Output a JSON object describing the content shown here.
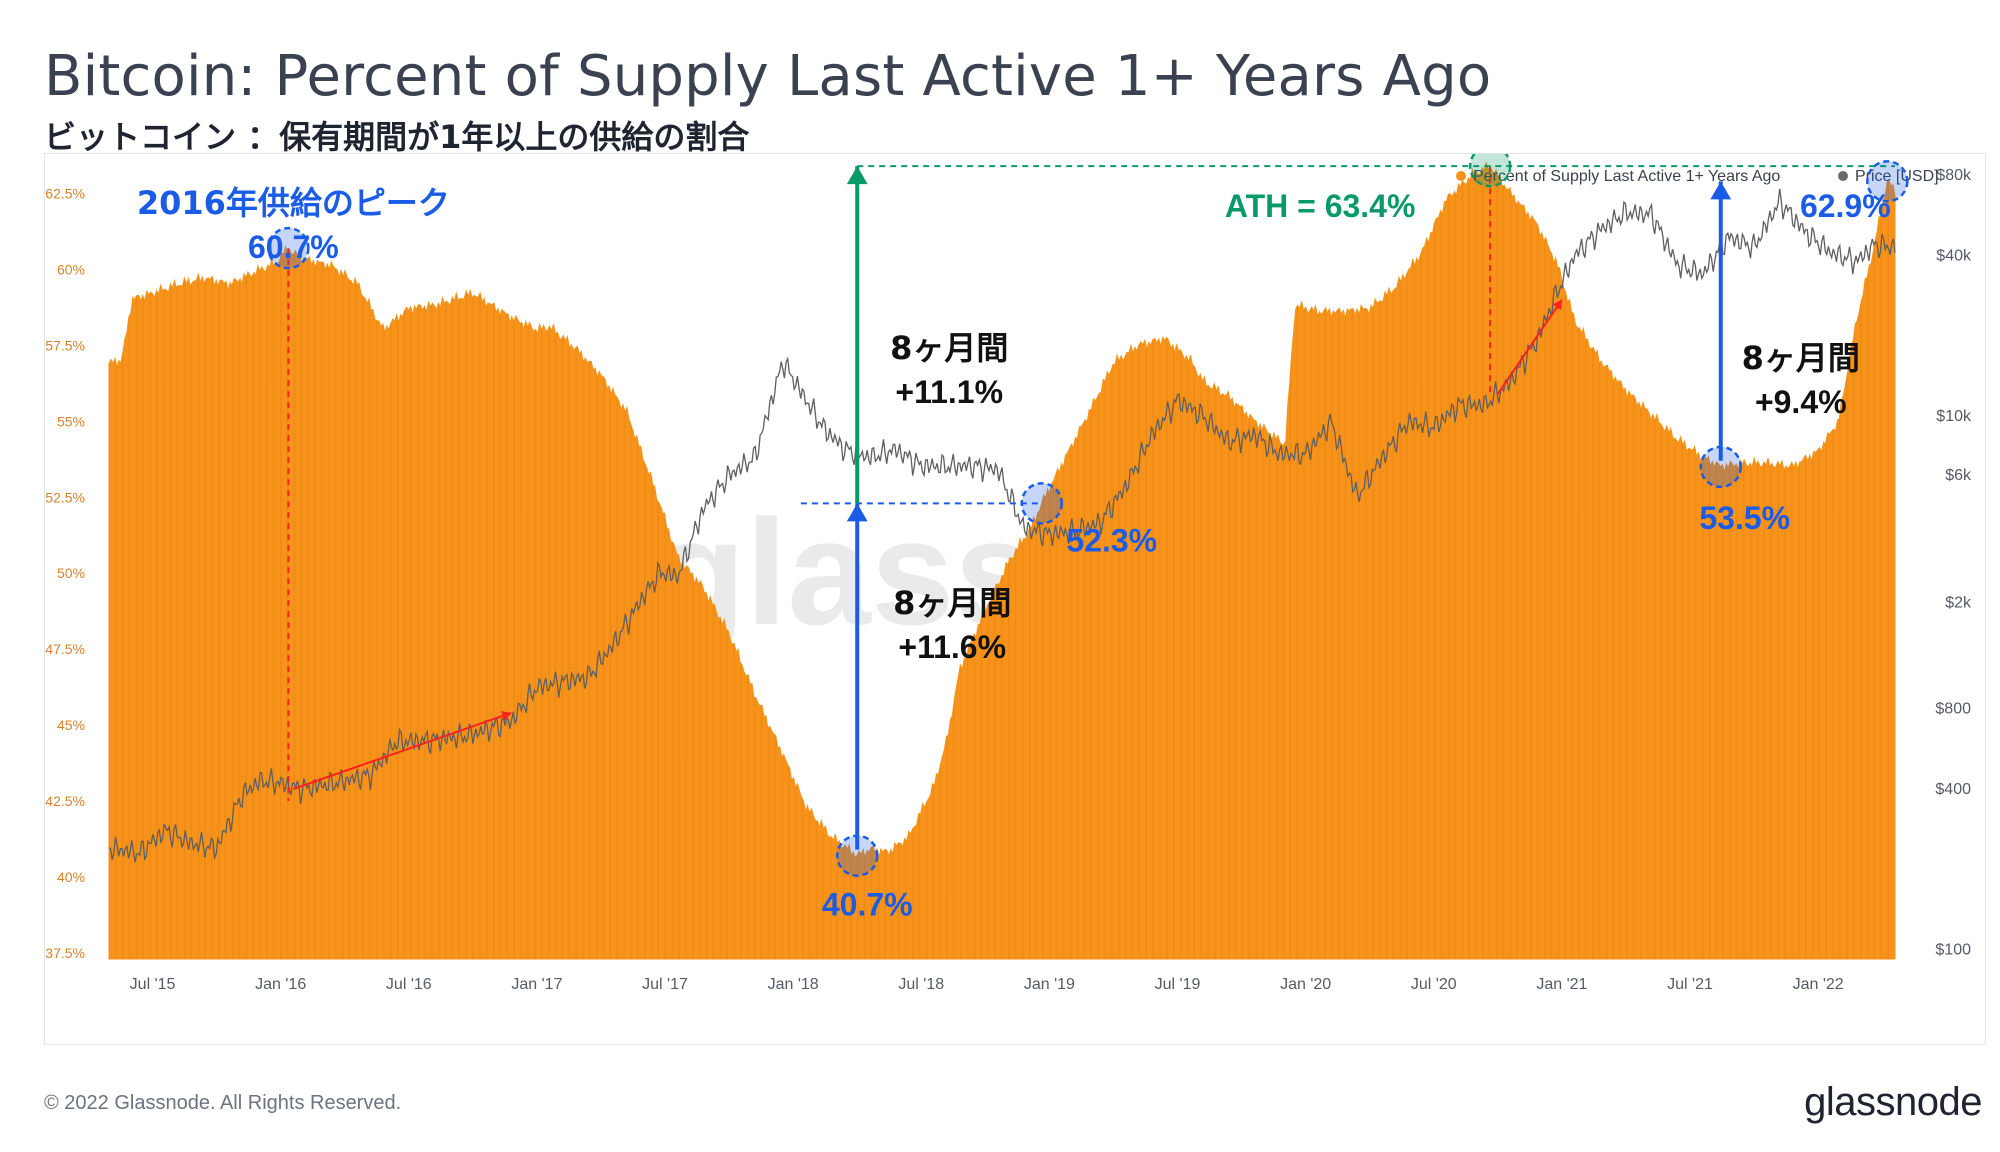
{
  "title": "Bitcoin: Percent of Supply Last Active 1+ Years Ago",
  "subtitle": "ビットコイン ：保有期間が1年以上の供給の割合",
  "footer": "© 2022 Glassnode. All Rights Reserved.",
  "brand": "glassnode",
  "watermark": "glassnode",
  "colors": {
    "supply": "#f7931a",
    "price": "#6b6b6b",
    "blue_annotation": "#1a5ce6",
    "green_annotation": "#0a9a6a",
    "red_annotation": "#ff2020"
  },
  "chart_data": {
    "type": "area",
    "title": "Bitcoin: Percent of Supply Last Active 1+ Years Ago",
    "legend": {
      "placement": "top-right",
      "entries": [
        "Percent of Supply Last Active 1+ Years Ago",
        "Price [USD]"
      ]
    },
    "x_ticks": [
      "Jul '15",
      "Jan '16",
      "Jul '16",
      "Jan '17",
      "Jul '17",
      "Jan '18",
      "Jul '18",
      "Jan '19",
      "Jul '19",
      "Jan '20",
      "Jul '20",
      "Jan '21",
      "Jul '21",
      "Jan '22"
    ],
    "x_range": [
      2015.33,
      2022.3
    ],
    "y_left": {
      "ticks": [
        "37.5%",
        "40%",
        "42.5%",
        "45%",
        "47.5%",
        "50%",
        "52.5%",
        "55%",
        "57.5%",
        "60%",
        "62.5%"
      ],
      "values": [
        37.5,
        40,
        42.5,
        45,
        47.5,
        50,
        52.5,
        55,
        57.5,
        60,
        62.5
      ],
      "ylim": [
        37.3,
        63.8
      ]
    },
    "y_right": {
      "scale": "log",
      "ticks": [
        "$100",
        "$400",
        "$800",
        "$2k",
        "$6k",
        "$10k",
        "$40k",
        "$80k"
      ],
      "values": [
        100,
        400,
        800,
        2000,
        6000,
        10000,
        40000,
        80000
      ],
      "ylim": [
        92,
        96000
      ]
    },
    "series": [
      {
        "name": "Percent of Supply Last Active 1+ Years Ago",
        "axis": "left",
        "x": [
          2015.33,
          2015.38,
          2015.42,
          2015.5,
          2015.6,
          2015.7,
          2015.8,
          2015.9,
          2015.98,
          2016.03,
          2016.05,
          2016.1,
          2016.2,
          2016.3,
          2016.4,
          2016.5,
          2016.6,
          2016.75,
          2016.9,
          2017.0,
          2017.05,
          2017.15,
          2017.25,
          2017.35,
          2017.45,
          2017.55,
          2017.65,
          2017.75,
          2017.85,
          2017.95,
          2018.05,
          2018.15,
          2018.2,
          2018.25,
          2018.3,
          2018.37,
          2018.45,
          2018.55,
          2018.6,
          2018.65,
          2018.75,
          2018.85,
          2018.93,
          2018.97,
          2019.05,
          2019.15,
          2019.25,
          2019.35,
          2019.45,
          2019.55,
          2019.6,
          2019.7,
          2019.8,
          2019.92,
          2019.96,
          2020.05,
          2020.15,
          2020.25,
          2020.35,
          2020.45,
          2020.55,
          2020.65,
          2020.72,
          2020.8,
          2020.9,
          2020.98,
          2021.05,
          2021.15,
          2021.25,
          2021.35,
          2021.45,
          2021.55,
          2021.62,
          2021.7,
          2021.8,
          2021.9,
          2022.0,
          2022.08,
          2022.15,
          2022.22,
          2022.27,
          2022.3
        ],
        "values": [
          56.9,
          57.0,
          59.0,
          59.2,
          59.5,
          59.7,
          59.5,
          59.9,
          60.2,
          60.7,
          60.5,
          60.3,
          60.1,
          59.5,
          58.0,
          58.7,
          58.8,
          59.2,
          58.4,
          58.0,
          58.1,
          57.4,
          56.5,
          55.3,
          53.0,
          50.5,
          49.5,
          48.0,
          46.0,
          44.2,
          42.3,
          41.3,
          41.0,
          40.7,
          40.9,
          40.8,
          41.3,
          43.0,
          44.5,
          46.8,
          48.8,
          50.5,
          51.5,
          52.3,
          53.6,
          55.2,
          56.9,
          57.5,
          57.7,
          57.0,
          56.3,
          55.8,
          55.0,
          54.2,
          58.8,
          58.6,
          58.6,
          58.7,
          59.4,
          60.5,
          62.3,
          63.1,
          63.4,
          62.5,
          61.5,
          60.2,
          58.3,
          57.0,
          56.0,
          55.2,
          54.4,
          53.8,
          53.5,
          53.6,
          53.6,
          53.5,
          54.0,
          55.0,
          58.3,
          60.8,
          62.9,
          62.6
        ]
      },
      {
        "name": "Price [USD]",
        "axis": "right",
        "x": [
          2015.33,
          2015.45,
          2015.55,
          2015.65,
          2015.75,
          2015.85,
          2015.92,
          2016.0,
          2016.08,
          2016.2,
          2016.35,
          2016.45,
          2016.6,
          2016.75,
          2016.9,
          2017.0,
          2017.08,
          2017.2,
          2017.3,
          2017.4,
          2017.48,
          2017.55,
          2017.65,
          2017.75,
          2017.85,
          2017.96,
          2018.05,
          2018.12,
          2018.2,
          2018.3,
          2018.4,
          2018.5,
          2018.6,
          2018.7,
          2018.8,
          2018.9,
          2019.0,
          2019.1,
          2019.2,
          2019.3,
          2019.4,
          2019.5,
          2019.6,
          2019.7,
          2019.8,
          2019.9,
          2020.0,
          2020.1,
          2020.2,
          2020.3,
          2020.4,
          2020.5,
          2020.6,
          2020.7,
          2020.8,
          2020.9,
          2020.98,
          2021.05,
          2021.15,
          2021.25,
          2021.35,
          2021.45,
          2021.55,
          2021.65,
          2021.75,
          2021.85,
          2021.95,
          2022.05,
          2022.15,
          2022.22,
          2022.3
        ],
        "values": [
          240,
          230,
          280,
          250,
          240,
          380,
          430,
          420,
          400,
          420,
          450,
          600,
          610,
          640,
          720,
          960,
          1000,
          1050,
          1400,
          2000,
          2600,
          2500,
          4500,
          6000,
          7000,
          16000,
          11500,
          9000,
          7500,
          7000,
          7500,
          6500,
          6500,
          6500,
          6300,
          3800,
          3600,
          3700,
          4000,
          5500,
          8500,
          11500,
          10000,
          8000,
          8500,
          7200,
          7200,
          9500,
          5000,
          7000,
          9500,
          9100,
          11000,
          11000,
          13500,
          19000,
          29000,
          40000,
          50000,
          58000,
          57000,
          37000,
          34000,
          47000,
          43000,
          64000,
          49000,
          41000,
          38000,
          44000,
          43000
        ]
      }
    ],
    "annotations": [
      {
        "label": "2016年供給のピーク",
        "value_label": "60.7%",
        "x": 2016.03,
        "y": 60.7,
        "color": "blue"
      },
      {
        "label": "ATH = 63.4%",
        "x": 2020.72,
        "y": 63.4,
        "color": "green"
      },
      {
        "label": "62.9%",
        "x": 2022.27,
        "y": 62.9,
        "color": "blue"
      },
      {
        "label": "40.7%",
        "x": 2018.25,
        "y": 40.7,
        "color": "blue"
      },
      {
        "label": "52.3%",
        "x": 2018.97,
        "y": 52.3,
        "color": "blue"
      },
      {
        "label": "53.5%",
        "x": 2021.62,
        "y": 53.5,
        "color": "blue"
      },
      {
        "label": "8ヶ月間",
        "sub": "+11.1%",
        "from": 52.3,
        "to": 63.4,
        "color": "green"
      },
      {
        "label": "8ヶ月間",
        "sub": "+11.6%",
        "from": 40.7,
        "to": 52.3,
        "color": "blue"
      },
      {
        "label": "8ヶ月間",
        "sub": "+9.4%",
        "from": 53.5,
        "to": 62.9,
        "color": "blue"
      }
    ]
  }
}
